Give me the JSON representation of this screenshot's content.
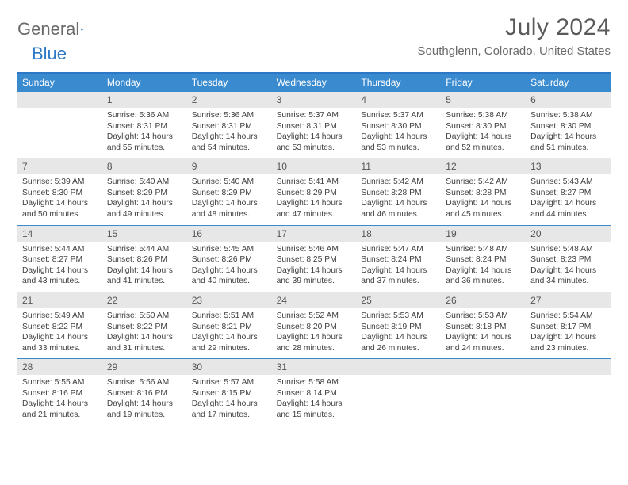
{
  "logo": {
    "word1": "General",
    "word2": "Blue"
  },
  "colors": {
    "accent": "#3a8ad0",
    "accent_border": "#2d78c6",
    "header_bg": "#e7e7e7",
    "text_muted": "#6a6a6a",
    "text_body": "#404040"
  },
  "title": "July 2024",
  "location": "Southglenn, Colorado, United States",
  "dow": [
    "Sunday",
    "Monday",
    "Tuesday",
    "Wednesday",
    "Thursday",
    "Friday",
    "Saturday"
  ],
  "weeks": [
    [
      null,
      {
        "n": "1",
        "sr": "Sunrise: 5:36 AM",
        "ss": "Sunset: 8:31 PM",
        "dl1": "Daylight: 14 hours",
        "dl2": "and 55 minutes."
      },
      {
        "n": "2",
        "sr": "Sunrise: 5:36 AM",
        "ss": "Sunset: 8:31 PM",
        "dl1": "Daylight: 14 hours",
        "dl2": "and 54 minutes."
      },
      {
        "n": "3",
        "sr": "Sunrise: 5:37 AM",
        "ss": "Sunset: 8:31 PM",
        "dl1": "Daylight: 14 hours",
        "dl2": "and 53 minutes."
      },
      {
        "n": "4",
        "sr": "Sunrise: 5:37 AM",
        "ss": "Sunset: 8:30 PM",
        "dl1": "Daylight: 14 hours",
        "dl2": "and 53 minutes."
      },
      {
        "n": "5",
        "sr": "Sunrise: 5:38 AM",
        "ss": "Sunset: 8:30 PM",
        "dl1": "Daylight: 14 hours",
        "dl2": "and 52 minutes."
      },
      {
        "n": "6",
        "sr": "Sunrise: 5:38 AM",
        "ss": "Sunset: 8:30 PM",
        "dl1": "Daylight: 14 hours",
        "dl2": "and 51 minutes."
      }
    ],
    [
      {
        "n": "7",
        "sr": "Sunrise: 5:39 AM",
        "ss": "Sunset: 8:30 PM",
        "dl1": "Daylight: 14 hours",
        "dl2": "and 50 minutes."
      },
      {
        "n": "8",
        "sr": "Sunrise: 5:40 AM",
        "ss": "Sunset: 8:29 PM",
        "dl1": "Daylight: 14 hours",
        "dl2": "and 49 minutes."
      },
      {
        "n": "9",
        "sr": "Sunrise: 5:40 AM",
        "ss": "Sunset: 8:29 PM",
        "dl1": "Daylight: 14 hours",
        "dl2": "and 48 minutes."
      },
      {
        "n": "10",
        "sr": "Sunrise: 5:41 AM",
        "ss": "Sunset: 8:29 PM",
        "dl1": "Daylight: 14 hours",
        "dl2": "and 47 minutes."
      },
      {
        "n": "11",
        "sr": "Sunrise: 5:42 AM",
        "ss": "Sunset: 8:28 PM",
        "dl1": "Daylight: 14 hours",
        "dl2": "and 46 minutes."
      },
      {
        "n": "12",
        "sr": "Sunrise: 5:42 AM",
        "ss": "Sunset: 8:28 PM",
        "dl1": "Daylight: 14 hours",
        "dl2": "and 45 minutes."
      },
      {
        "n": "13",
        "sr": "Sunrise: 5:43 AM",
        "ss": "Sunset: 8:27 PM",
        "dl1": "Daylight: 14 hours",
        "dl2": "and 44 minutes."
      }
    ],
    [
      {
        "n": "14",
        "sr": "Sunrise: 5:44 AM",
        "ss": "Sunset: 8:27 PM",
        "dl1": "Daylight: 14 hours",
        "dl2": "and 43 minutes."
      },
      {
        "n": "15",
        "sr": "Sunrise: 5:44 AM",
        "ss": "Sunset: 8:26 PM",
        "dl1": "Daylight: 14 hours",
        "dl2": "and 41 minutes."
      },
      {
        "n": "16",
        "sr": "Sunrise: 5:45 AM",
        "ss": "Sunset: 8:26 PM",
        "dl1": "Daylight: 14 hours",
        "dl2": "and 40 minutes."
      },
      {
        "n": "17",
        "sr": "Sunrise: 5:46 AM",
        "ss": "Sunset: 8:25 PM",
        "dl1": "Daylight: 14 hours",
        "dl2": "and 39 minutes."
      },
      {
        "n": "18",
        "sr": "Sunrise: 5:47 AM",
        "ss": "Sunset: 8:24 PM",
        "dl1": "Daylight: 14 hours",
        "dl2": "and 37 minutes."
      },
      {
        "n": "19",
        "sr": "Sunrise: 5:48 AM",
        "ss": "Sunset: 8:24 PM",
        "dl1": "Daylight: 14 hours",
        "dl2": "and 36 minutes."
      },
      {
        "n": "20",
        "sr": "Sunrise: 5:48 AM",
        "ss": "Sunset: 8:23 PM",
        "dl1": "Daylight: 14 hours",
        "dl2": "and 34 minutes."
      }
    ],
    [
      {
        "n": "21",
        "sr": "Sunrise: 5:49 AM",
        "ss": "Sunset: 8:22 PM",
        "dl1": "Daylight: 14 hours",
        "dl2": "and 33 minutes."
      },
      {
        "n": "22",
        "sr": "Sunrise: 5:50 AM",
        "ss": "Sunset: 8:22 PM",
        "dl1": "Daylight: 14 hours",
        "dl2": "and 31 minutes."
      },
      {
        "n": "23",
        "sr": "Sunrise: 5:51 AM",
        "ss": "Sunset: 8:21 PM",
        "dl1": "Daylight: 14 hours",
        "dl2": "and 29 minutes."
      },
      {
        "n": "24",
        "sr": "Sunrise: 5:52 AM",
        "ss": "Sunset: 8:20 PM",
        "dl1": "Daylight: 14 hours",
        "dl2": "and 28 minutes."
      },
      {
        "n": "25",
        "sr": "Sunrise: 5:53 AM",
        "ss": "Sunset: 8:19 PM",
        "dl1": "Daylight: 14 hours",
        "dl2": "and 26 minutes."
      },
      {
        "n": "26",
        "sr": "Sunrise: 5:53 AM",
        "ss": "Sunset: 8:18 PM",
        "dl1": "Daylight: 14 hours",
        "dl2": "and 24 minutes."
      },
      {
        "n": "27",
        "sr": "Sunrise: 5:54 AM",
        "ss": "Sunset: 8:17 PM",
        "dl1": "Daylight: 14 hours",
        "dl2": "and 23 minutes."
      }
    ],
    [
      {
        "n": "28",
        "sr": "Sunrise: 5:55 AM",
        "ss": "Sunset: 8:16 PM",
        "dl1": "Daylight: 14 hours",
        "dl2": "and 21 minutes."
      },
      {
        "n": "29",
        "sr": "Sunrise: 5:56 AM",
        "ss": "Sunset: 8:16 PM",
        "dl1": "Daylight: 14 hours",
        "dl2": "and 19 minutes."
      },
      {
        "n": "30",
        "sr": "Sunrise: 5:57 AM",
        "ss": "Sunset: 8:15 PM",
        "dl1": "Daylight: 14 hours",
        "dl2": "and 17 minutes."
      },
      {
        "n": "31",
        "sr": "Sunrise: 5:58 AM",
        "ss": "Sunset: 8:14 PM",
        "dl1": "Daylight: 14 hours",
        "dl2": "and 15 minutes."
      },
      null,
      null,
      null
    ]
  ]
}
